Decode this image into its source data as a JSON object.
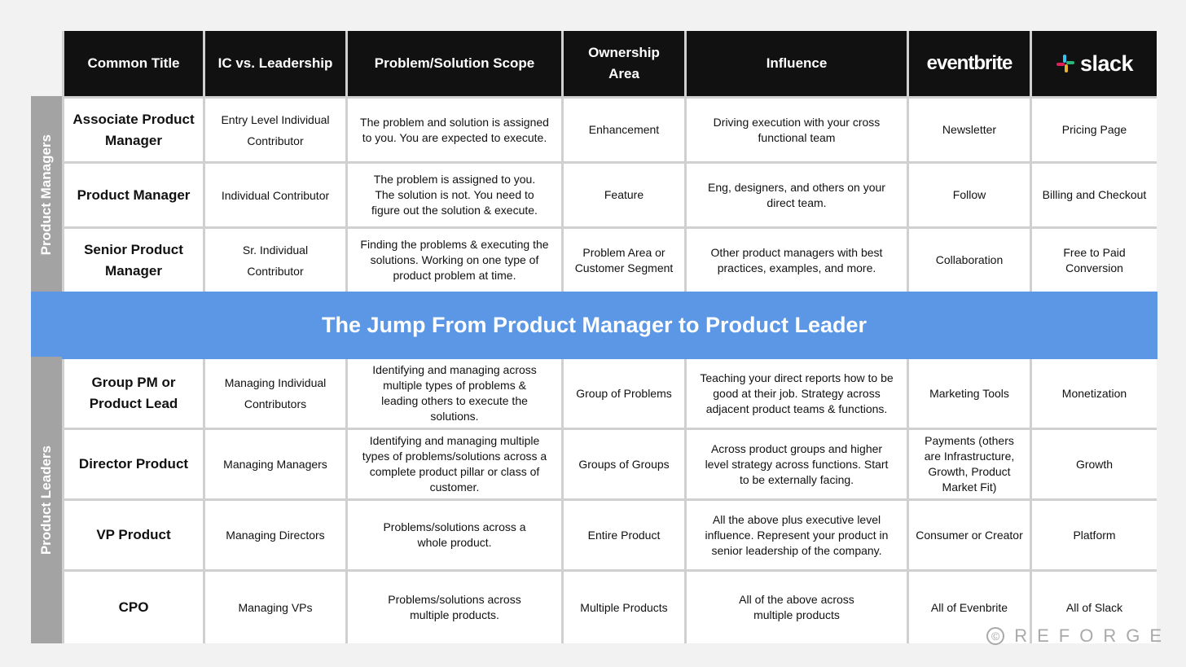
{
  "headers": [
    "Common Title",
    "IC vs. Leadership",
    "Problem/Solution Scope",
    "Ownership Area",
    "Influence"
  ],
  "logos": {
    "eventbrite": "eventbrite",
    "slack": "slack"
  },
  "side_labels": {
    "managers": "Product Managers",
    "leaders": "Product Leaders"
  },
  "banner": "The Jump From Product Manager to Product Leader",
  "manager_rows": [
    {
      "title": "Associate Product Manager",
      "ic": "Entry Level Individual Contributor",
      "scope": "The problem and solution is assigned to you. You are expected to execute.",
      "ownership": "Enhancement",
      "influence": "Driving execution with your cross functional team",
      "eventbrite": "Newsletter",
      "slack": "Pricing Page"
    },
    {
      "title": "Product Manager",
      "ic": "Individual Contributor",
      "scope": "The problem is assigned to you. The solution is not. You need to figure out the solution & execute.",
      "ownership": "Feature",
      "influence": "Eng, designers, and others on your direct team.",
      "eventbrite": "Follow",
      "slack": "Billing and Checkout"
    },
    {
      "title": "Senior Product Manager",
      "ic": "Sr. Individual Contributor",
      "scope": "Finding the problems & executing the solutions. Working on one type of product problem at time.",
      "ownership": "Problem Area or Customer Segment",
      "influence": "Other product managers with best practices, examples, and more.",
      "eventbrite": "Collaboration",
      "slack": "Free to Paid Conversion"
    }
  ],
  "leader_rows": [
    {
      "title": "Group PM or Product Lead",
      "ic": "Managing Individual Contributors",
      "scope": "Identifying and managing across multiple types of problems & leading others to execute the solutions.",
      "ownership": "Group of Problems",
      "influence": "Teaching your direct reports how to be good at their job. Strategy across adjacent product teams & functions.",
      "eventbrite": "Marketing Tools",
      "slack": "Monetization"
    },
    {
      "title": "Director Product",
      "ic": "Managing Managers",
      "scope": "Identifying and managing multiple types of problems/solutions across a complete product pillar or class of customer.",
      "ownership": "Groups of Groups",
      "influence": "Across product groups and higher level strategy across functions. Start to be externally facing.",
      "eventbrite": "Payments (others are Infrastructure, Growth, Product Market Fit)",
      "slack": "Growth"
    },
    {
      "title": "VP Product",
      "ic": "Managing Directors",
      "scope": "Problems/solutions across a whole product.",
      "ownership": "Entire Product",
      "influence": "All the above plus executive level influence. Represent your product in senior leadership of the company.",
      "eventbrite": "Consumer or Creator",
      "slack": "Platform"
    },
    {
      "title": "CPO",
      "ic": "Managing VPs",
      "scope": "Problems/solutions across multiple products.",
      "ownership": "Multiple Products",
      "influence": "All of the above across multiple products",
      "eventbrite": "All of Evenbrite",
      "slack": "All of Slack"
    }
  ],
  "watermark": "REFORGE",
  "colors": {
    "header_bg": "#111111",
    "banner_bg": "#5b97e5",
    "side_bg": "#a3a3a3",
    "page_bg": "#f2f2f2"
  }
}
